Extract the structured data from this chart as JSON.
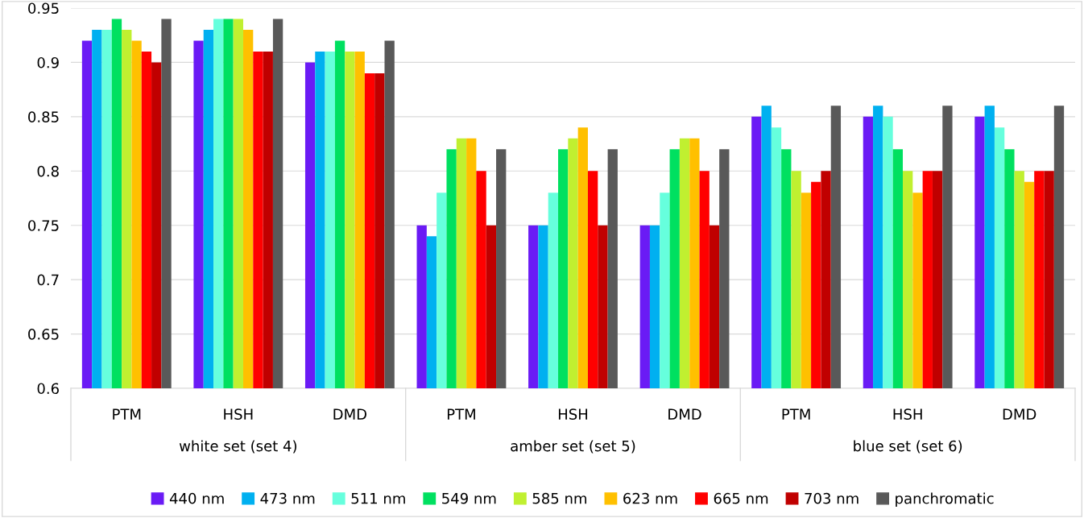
{
  "chart_data": {
    "type": "bar",
    "categories": [
      "PTM",
      "HSH",
      "DMD",
      "PTM",
      "HSH",
      "DMD",
      "PTM",
      "HSH",
      "DMD"
    ],
    "annotations": [
      "white set (set 4)",
      "amber set (set 5)",
      "blue set (set 6)"
    ],
    "ylim": [
      0.6,
      0.95
    ],
    "yticks": [
      {
        "value": 0.6,
        "label": "0.6"
      },
      {
        "value": 0.65,
        "label": "0.65"
      },
      {
        "value": 0.7,
        "label": "0.7"
      },
      {
        "value": 0.75,
        "label": "0.75"
      },
      {
        "value": 0.8,
        "label": "0.8"
      },
      {
        "value": 0.85,
        "label": "0.85"
      },
      {
        "value": 0.9,
        "label": "0.9"
      },
      {
        "value": 0.95,
        "label": "0.95"
      }
    ],
    "grid": "y",
    "legend": "bottom",
    "series": [
      {
        "name": "440 nm",
        "color": "#6a1bf5",
        "values": [
          0.92,
          0.92,
          0.9,
          0.75,
          0.75,
          0.75,
          0.85,
          0.85,
          0.85
        ]
      },
      {
        "name": "473 nm",
        "color": "#00b0f0",
        "values": [
          0.93,
          0.93,
          0.91,
          0.74,
          0.75,
          0.75,
          0.86,
          0.86,
          0.86
        ]
      },
      {
        "name": "511 nm",
        "color": "#66ffdd",
        "values": [
          0.93,
          0.94,
          0.91,
          0.78,
          0.78,
          0.78,
          0.84,
          0.85,
          0.84
        ]
      },
      {
        "name": "549 nm",
        "color": "#00e060",
        "values": [
          0.94,
          0.94,
          0.92,
          0.82,
          0.82,
          0.82,
          0.82,
          0.82,
          0.82
        ]
      },
      {
        "name": "585 nm",
        "color": "#c0f030",
        "values": [
          0.93,
          0.94,
          0.91,
          0.83,
          0.83,
          0.83,
          0.8,
          0.8,
          0.8
        ]
      },
      {
        "name": "623 nm",
        "color": "#ffc000",
        "values": [
          0.92,
          0.93,
          0.91,
          0.83,
          0.84,
          0.83,
          0.78,
          0.78,
          0.79
        ]
      },
      {
        "name": "665 nm",
        "color": "#ff0000",
        "values": [
          0.91,
          0.91,
          0.89,
          0.8,
          0.8,
          0.8,
          0.79,
          0.8,
          0.8
        ]
      },
      {
        "name": "703 nm",
        "color": "#c00000",
        "values": [
          0.9,
          0.91,
          0.89,
          0.75,
          0.75,
          0.75,
          0.8,
          0.8,
          0.8
        ]
      },
      {
        "name": "panchromatic",
        "color": "#595959",
        "values": [
          0.94,
          0.94,
          0.92,
          0.82,
          0.82,
          0.82,
          0.86,
          0.86,
          0.86
        ]
      }
    ]
  }
}
